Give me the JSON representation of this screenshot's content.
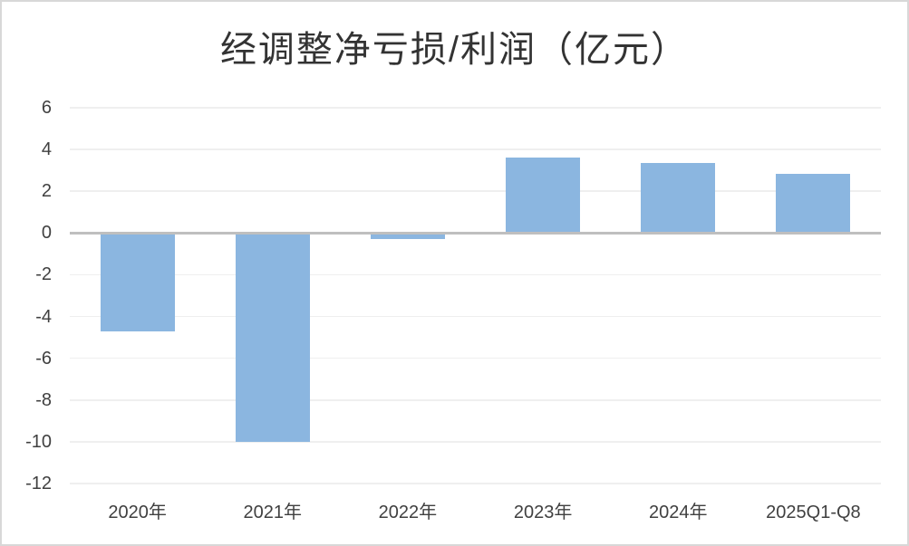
{
  "chart_data": {
    "type": "bar",
    "title": "经调整净亏损/利润（亿元）",
    "categories": [
      "2020年",
      "2021年",
      "2022年",
      "2023年",
      "2024年",
      "2025Q1-Q8"
    ],
    "values": [
      -4.7,
      -10.0,
      -0.3,
      3.6,
      3.35,
      2.85
    ],
    "xlabel": "",
    "ylabel": "",
    "ylim": [
      -12,
      6
    ],
    "yticks": [
      6,
      4,
      2,
      0,
      -2,
      -4,
      -6,
      -8,
      -10,
      -12
    ],
    "grid": true,
    "legend_position": "none",
    "bar_color": "#8bb6e0",
    "zero_line_color": "#bfbfbf",
    "gridline_color": "#efefef",
    "text_color": "#404040",
    "title_color": "#333333",
    "frame_border_color": "#d8d8d8"
  }
}
